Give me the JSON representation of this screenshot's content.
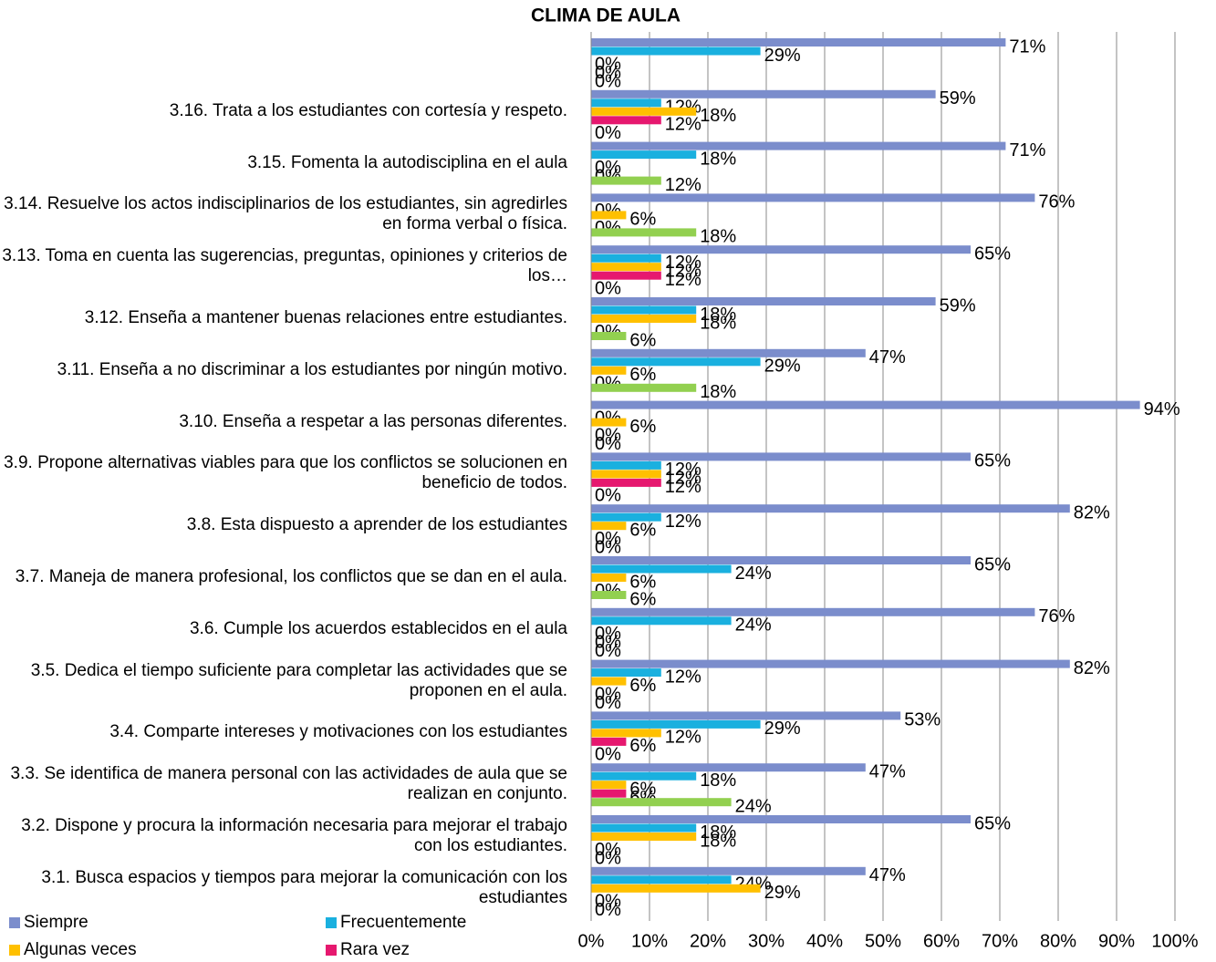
{
  "chart_data": {
    "type": "hbar",
    "title": "CLIMA DE AULA",
    "categories": [
      null,
      "3.16.    Trata a los estudiantes con cortesía y respeto.",
      "3.15.    Fomenta la autodisciplina en el aula",
      "3.14.    Resuelve los actos indisciplinarios de los estudiantes, sin agredirles en forma verbal o física.",
      "3.13.    Toma en cuenta las sugerencias, preguntas, opiniones y criterios de los…",
      "3.12.    Enseña a mantener buenas relaciones entre estudiantes.",
      "3.11.    Enseña a no discriminar a los estudiantes por ningún motivo.",
      "3.10.    Enseña a respetar a las personas diferentes.",
      "3.9.  Propone alternativas viables para que los conflictos se solucionen en beneficio de todos.",
      "3.8.  Esta dispuesto a aprender de los estudiantes",
      "3.7.  Maneja de manera  profesional, los conflictos que se dan en el aula.",
      "3.6.  Cumple los acuerdos establecidos en el aula",
      "3.5.  Dedica el tiempo suficiente para completar las actividades que se proponen en el aula.",
      "3.4.  Comparte intereses y motivaciones con los estudiantes",
      "3.3.  Se identifica de manera personal con las actividades de aula que se realizan en conjunto.",
      "3.2.  Dispone y procura la información necesaria para mejorar el trabajo con los estudiantes.",
      "3.1.  Busca espacios y tiempos para mejorar la comunicación con los estudiantes"
    ],
    "series": [
      {
        "name": "Siempre",
        "color": "#7b8dcc",
        "values": [
          71,
          59,
          71,
          76,
          65,
          59,
          47,
          94,
          65,
          82,
          65,
          76,
          82,
          53,
          47,
          65,
          47
        ],
        "value_labels": [
          "71%",
          "59%",
          "71%",
          "76%",
          "65%",
          "59%",
          "47%",
          "94%",
          "65%",
          "82%",
          "65%",
          "76%",
          "82%",
          "53%",
          "47%",
          "65%",
          "47%"
        ]
      },
      {
        "name": "Frecuentemente",
        "color": "#1ab0df",
        "values": [
          29,
          12,
          18,
          0,
          12,
          18,
          29,
          0,
          12,
          12,
          24,
          24,
          12,
          29,
          18,
          18,
          24
        ],
        "value_labels": [
          "29%",
          "12%",
          "18%",
          "0%",
          "12%",
          "18%",
          "29%",
          "0%",
          "12%",
          "12%",
          "24%",
          "24%",
          "12%",
          "29%",
          "18%",
          "18%",
          "24%"
        ]
      },
      {
        "name": "Algunas veces",
        "color": "#ffc000",
        "values": [
          0,
          18,
          0,
          6,
          12,
          18,
          6,
          6,
          12,
          6,
          6,
          0,
          6,
          12,
          6,
          18,
          29
        ],
        "value_labels": [
          "0%",
          "18%",
          "0%",
          "6%",
          "12%",
          "18%",
          "6%",
          "6%",
          "12%",
          "6%",
          "6%",
          "0%",
          "6%",
          "12%",
          "6%",
          "18%",
          "29%"
        ]
      },
      {
        "name": "Rara vez",
        "color": "#e6186f",
        "values": [
          0,
          12,
          0,
          0,
          12,
          0,
          0,
          0,
          12,
          0,
          0,
          0,
          0,
          6,
          6,
          0,
          0
        ],
        "value_labels": [
          "0%",
          "12%",
          "0%",
          "0%",
          "12%",
          "0%",
          "0%",
          "0%",
          "12%",
          "0%",
          "0%",
          "0%",
          "0%",
          "6%",
          "6%",
          "0%",
          "0%"
        ]
      },
      {
        "color": "#92d050",
        "values": [
          0,
          0,
          12,
          18,
          0,
          6,
          18,
          0,
          0,
          0,
          6,
          0,
          0,
          0,
          24,
          0,
          0
        ],
        "value_labels": [
          "0%",
          "0%",
          "12%",
          "18%",
          "0%",
          "6%",
          "18%",
          "0%",
          "0%",
          "0%",
          "6%",
          "0%",
          "0%",
          "0%",
          "24%",
          "0%",
          "0%"
        ]
      }
    ],
    "xlim": [
      0,
      100
    ],
    "xticks": [
      {
        "value": 0,
        "label": "0%"
      },
      {
        "value": 10,
        "label": "10%"
      },
      {
        "value": 20,
        "label": "20%"
      },
      {
        "value": 30,
        "label": "30%"
      },
      {
        "value": 40,
        "label": "40%"
      },
      {
        "value": 50,
        "label": "50%"
      },
      {
        "value": 60,
        "label": "60%"
      },
      {
        "value": 70,
        "label": "70%"
      },
      {
        "value": 80,
        "label": "80%"
      },
      {
        "value": 90,
        "label": "90%"
      },
      {
        "value": 100,
        "label": "100%"
      }
    ],
    "grid": true
  }
}
